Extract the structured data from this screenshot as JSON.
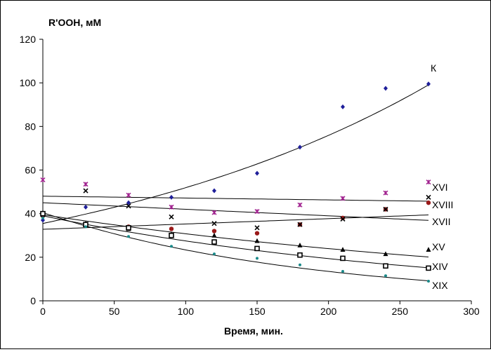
{
  "chart_data": {
    "type": "scatter",
    "title": "",
    "ylabel": "R'OOH, мМ",
    "xlabel": "Время, мин.",
    "xlim": [
      0,
      300
    ],
    "ylim": [
      0,
      120
    ],
    "xticks": [
      0,
      50,
      100,
      150,
      200,
      250,
      300
    ],
    "yticks": [
      0,
      20,
      40,
      60,
      80,
      100,
      120
    ],
    "grid": false,
    "legend": "none",
    "x": [
      0,
      30,
      60,
      90,
      120,
      150,
      180,
      210,
      240,
      270
    ],
    "series": [
      {
        "name": "К",
        "marker": "diamond",
        "color": "#1f1f9a",
        "values": [
          37,
          43,
          45,
          47.5,
          50.5,
          58.5,
          70.5,
          89,
          97.5,
          99.5
        ],
        "trend": {
          "type": "exp",
          "a": 35.5,
          "b": 0.0038
        }
      },
      {
        "name": "XVI",
        "marker": "asterisk",
        "color": "#a0208e",
        "values": [
          55.5,
          53.5,
          48.5,
          43,
          40.5,
          41,
          44,
          47,
          49.5,
          54.5
        ],
        "trend": {
          "type": "linear",
          "m": -0.0085,
          "c": 48
        }
      },
      {
        "name": "XVIII",
        "marker": "circle",
        "color": "#9a1a1a",
        "values": [
          39,
          34.5,
          34,
          33,
          32,
          31,
          35,
          38,
          42,
          45
        ],
        "trend": {
          "type": "linear",
          "m": 0.0245,
          "c": 32.8
        }
      },
      {
        "name": "XVII",
        "marker": "x",
        "color": "#000000",
        "values": [
          39.5,
          50.5,
          43.5,
          38.5,
          35.5,
          33.5,
          35,
          37.5,
          42,
          47.5
        ],
        "trend": {
          "type": "linear",
          "m": -0.03,
          "c": 45
        }
      },
      {
        "name": "XV",
        "marker": "triangle",
        "color": "#000000",
        "values": [
          40.5,
          35.5,
          33,
          30.5,
          30,
          27.5,
          25.5,
          23.5,
          21.5,
          23.5
        ],
        "trend": {
          "type": "exp",
          "a": 39.5,
          "b": -0.0025
        }
      },
      {
        "name": "XIV",
        "marker": "square",
        "color": "#000000",
        "values": [
          40,
          35,
          33.5,
          30,
          27,
          24,
          21,
          19.5,
          16,
          15
        ],
        "trend": {
          "type": "exp",
          "a": 39,
          "b": -0.0035
        }
      },
      {
        "name": "XIX",
        "marker": "dot",
        "color": "#1a8a8a",
        "values": [
          38,
          34,
          29.5,
          25,
          21.5,
          19.5,
          16.5,
          13.5,
          11.5,
          9
        ],
        "trend": {
          "type": "exp",
          "a": 40.5,
          "b": -0.0055
        }
      }
    ]
  }
}
